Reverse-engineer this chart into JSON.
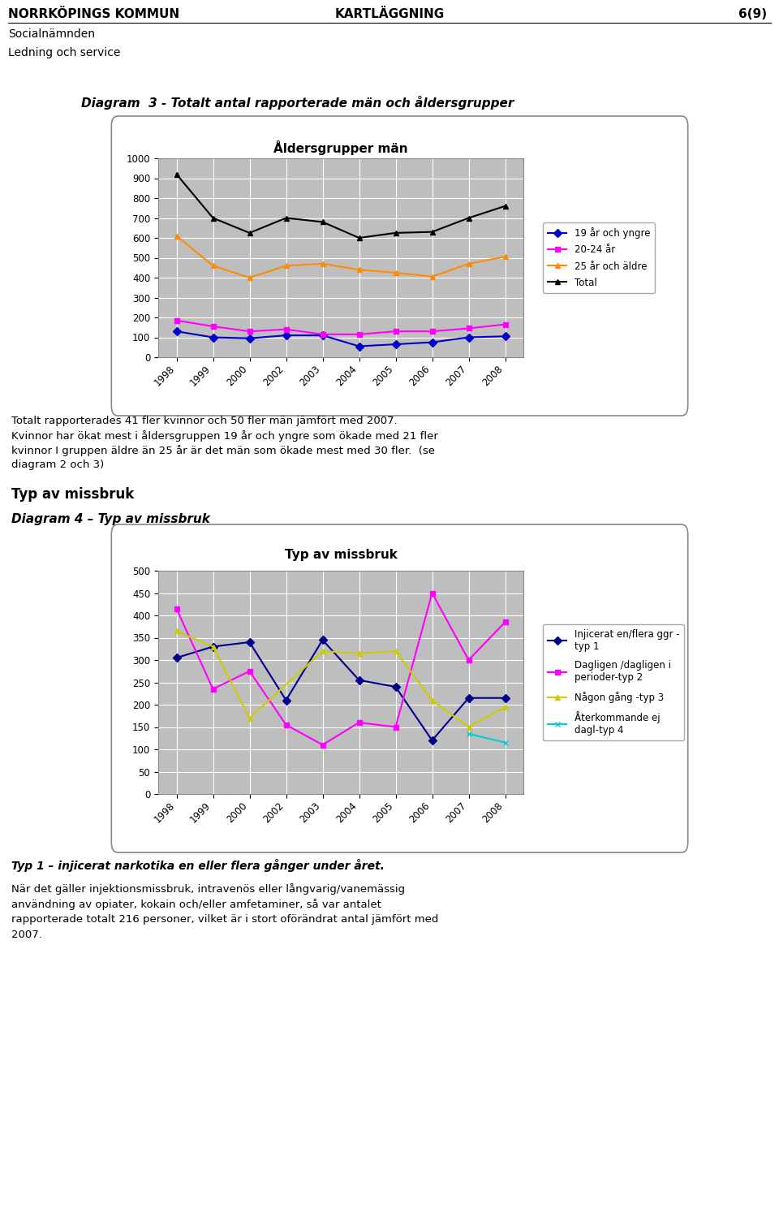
{
  "years": [
    1998,
    1999,
    2000,
    2002,
    2003,
    2004,
    2005,
    2006,
    2007,
    2008
  ],
  "chart1_title": "Åldersgrupper män",
  "chart1_series": {
    "19 år och yngre": {
      "values": [
        130,
        100,
        95,
        110,
        110,
        55,
        65,
        75,
        100,
        105
      ],
      "color": "#0000CD",
      "marker": "D"
    },
    "20-24 år": {
      "values": [
        185,
        155,
        130,
        140,
        115,
        115,
        130,
        130,
        145,
        165
      ],
      "color": "#FF00FF",
      "marker": "s"
    },
    "25 år och äldre": {
      "values": [
        610,
        460,
        400,
        460,
        470,
        440,
        425,
        405,
        470,
        505
      ],
      "color": "#FF8C00",
      "marker": "^"
    },
    "Total": {
      "values": [
        920,
        700,
        625,
        700,
        680,
        600,
        625,
        630,
        700,
        760
      ],
      "color": "#000000",
      "marker": "^"
    }
  },
  "chart1_ylim": [
    0,
    1000
  ],
  "chart1_yticks": [
    0,
    100,
    200,
    300,
    400,
    500,
    600,
    700,
    800,
    900,
    1000
  ],
  "chart2_title": "Typ av missbruk",
  "chart2_series": {
    "Injicerat en/flera ggr -\ntyp 1": {
      "values": [
        305,
        330,
        340,
        210,
        345,
        255,
        240,
        120,
        215,
        215
      ],
      "color": "#00008B",
      "marker": "D"
    },
    "Dagligen /dagligen i\nperioder-typ 2": {
      "values": [
        415,
        235,
        275,
        155,
        110,
        160,
        150,
        450,
        300,
        385
      ],
      "color": "#FF00FF",
      "marker": "s"
    },
    "Någon gång -typ 3": {
      "values": [
        365,
        330,
        170,
        null,
        320,
        315,
        320,
        210,
        150,
        195
      ],
      "color": "#CCCC00",
      "marker": "^"
    },
    "Återkommande ej\ndagl-typ 4": {
      "values": [
        null,
        null,
        null,
        null,
        null,
        null,
        null,
        null,
        135,
        115
      ],
      "color": "#00CED1",
      "marker": "x"
    }
  },
  "chart2_ylim": [
    0,
    500
  ],
  "chart2_yticks": [
    0,
    50,
    100,
    150,
    200,
    250,
    300,
    350,
    400,
    450,
    500
  ],
  "header_left": "NORRKÖPINGS KOMMUN",
  "header_center": "KARTLÄGGNING",
  "header_right": "6(9)",
  "subheader1": "Socialnämnden",
  "subheader2": "Ledning och service",
  "diagram3_label": "Diagram  3 - Totalt antal rapporterade män och åldersgrupper",
  "diagram4_label": "Diagram 4 – Typ av missbruk",
  "section_title": "Typ av missbruk",
  "text_block1_line1": "Totalt rapporterades 41 fler kvinnor och 50 fler män jämfört med 2007.",
  "text_block1_line2": "Kvinnor har ökat mest i åldersgruppen 19 år och yngre som ökade med 21 fler",
  "text_block1_line3": "kvinnor I gruppen äldre än 25 år är det män som ökade mest med 30 fler.  (se",
  "text_block1_line4": "diagram 2 och 3)",
  "text_italic": "Typ 1 – injicerat narkotika en eller flera gånger under året.",
  "text_block2_line1": "När det gäller injektionsmissbruk, intravenös eller långvarig/vanemässig",
  "text_block2_line2": "användning av opiater, kokain och/eller amfetaminer, så var antalet",
  "text_block2_line3": "rapporterade totalt 216 personer, vilket är i stort oförändrat antal jämfört med",
  "text_block2_line4": "2007.",
  "chart_bg": "#BEBEBE"
}
